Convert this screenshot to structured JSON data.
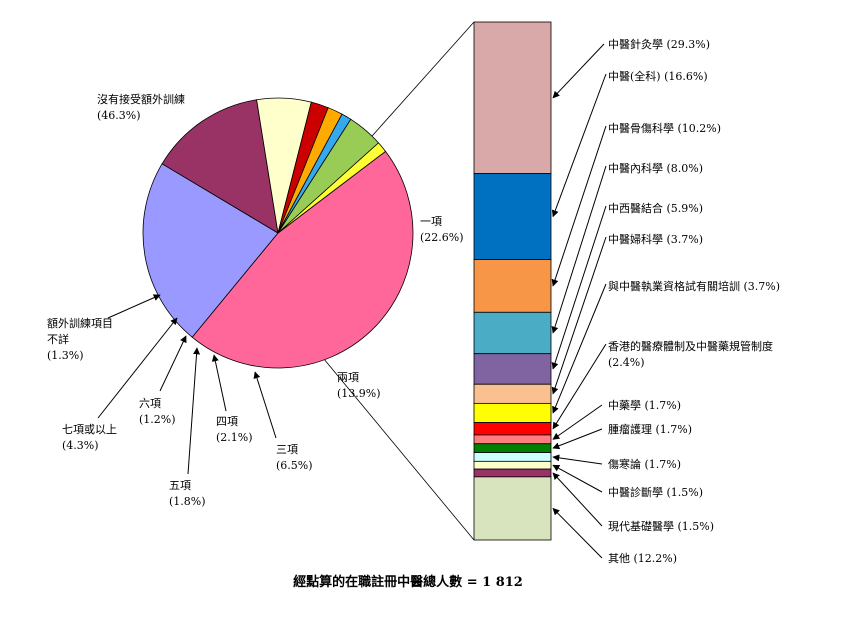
{
  "chart_data": {
    "type": "pie",
    "footer": "經點算的在職註冊中醫總人數 = 1 812",
    "pie": {
      "slices": [
        {
          "name": "沒有接受額外訓練",
          "pct": "(46.3%)",
          "value": 46.3,
          "color": "#ff6699"
        },
        {
          "name": "一項",
          "pct": "(22.6%)",
          "value": 22.6,
          "color": "#9999ff"
        },
        {
          "name": "兩項",
          "pct": "(13.9%)",
          "value": 13.9,
          "color": "#993366"
        },
        {
          "name": "三項",
          "pct": "(6.5%)",
          "value": 6.5,
          "color": "#ffffcc"
        },
        {
          "name": "四項",
          "pct": "(2.1%)",
          "value": 2.1,
          "color": "#cc0000"
        },
        {
          "name": "五項",
          "pct": "(1.8%)",
          "value": 1.8,
          "color": "#ffaa00"
        },
        {
          "name": "六項",
          "pct": "(1.2%)",
          "value": 1.2,
          "color": "#33aaee"
        },
        {
          "name": "七項或以上",
          "pct": "(4.3%)",
          "value": 4.3,
          "color": "#99cc55"
        },
        {
          "name": "額外訓練項目不詳",
          "name_lines": [
            "額外訓練項目",
            "不詳"
          ],
          "pct": "(1.3%)",
          "value": 1.3,
          "color": "#ffff33"
        }
      ]
    },
    "bar": {
      "segments": [
        {
          "name": "中醫針灸學",
          "pct": "(29.3%)",
          "value": 29.3,
          "color": "#d9a9a9"
        },
        {
          "name": "中醫(全科)",
          "pct": "(16.6%)",
          "value": 16.6,
          "color": "#0070c0"
        },
        {
          "name": "中醫骨傷科學",
          "pct": "(10.2%)",
          "value": 10.2,
          "color": "#f79646"
        },
        {
          "name": "中醫內科學",
          "pct": "(8.0%)",
          "value": 8.0,
          "color": "#4bacc6"
        },
        {
          "name": "中西醫結合",
          "pct": "(5.9%)",
          "value": 5.9,
          "color": "#8064a2"
        },
        {
          "name": "中醫婦科學",
          "pct": "(3.7%)",
          "value": 3.7,
          "color": "#fac090"
        },
        {
          "name": "與中醫執業資格試有關培訓",
          "pct": "(3.7%)",
          "value": 3.7,
          "color": "#ffff00"
        },
        {
          "name": "香港的醫療體制及中醫藥規管制度",
          "pct": "(2.4%)",
          "value": 2.4,
          "color": "#ff0000"
        },
        {
          "name": "中藥學",
          "pct": "(1.7%)",
          "value": 1.7,
          "color": "#ff7c80"
        },
        {
          "name": "腫瘤護理",
          "pct": "(1.7%)",
          "value": 1.7,
          "color": "#008000"
        },
        {
          "name": "傷寒論",
          "pct": "(1.7%)",
          "value": 1.7,
          "color": "#ccffff"
        },
        {
          "name": "中醫診斷學",
          "pct": "(1.5%)",
          "value": 1.5,
          "color": "#ffffcc"
        },
        {
          "name": "現代基礎醫學",
          "pct": "(1.5%)",
          "value": 1.5,
          "color": "#993366"
        },
        {
          "name": "其他",
          "pct": "(12.2%)",
          "value": 12.2,
          "color": "#d7e4bd"
        }
      ]
    }
  }
}
